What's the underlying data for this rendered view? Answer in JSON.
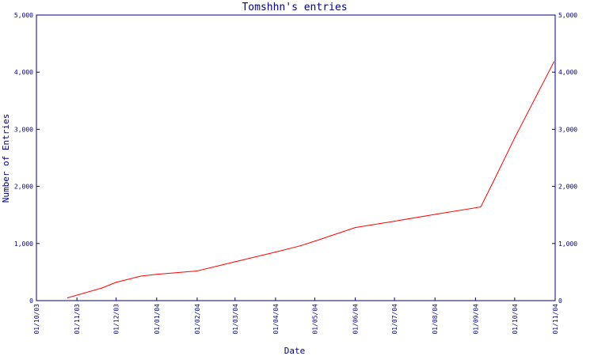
{
  "chart_data": {
    "type": "line",
    "title": "Tomshhn's entries",
    "xlabel": "Date",
    "ylabel": "Number of Entries",
    "x_ticks": [
      "01/10/03",
      "01/11/03",
      "01/12/03",
      "01/01/04",
      "01/02/04",
      "01/03/04",
      "01/04/04",
      "01/05/04",
      "01/06/04",
      "01/07/04",
      "01/08/04",
      "01/09/04",
      "01/10/04",
      "01/11/04"
    ],
    "y_ticks": [
      "0",
      "1,000",
      "2,000",
      "3,000",
      "4,000",
      "5,000"
    ],
    "ylim": [
      0,
      5000
    ],
    "xlim": [
      "2003-10-01",
      "2004-11-01"
    ],
    "grid": false,
    "series": [
      {
        "color": "#ff0000",
        "points": [
          {
            "x": "2003-10-25",
            "y": 50
          },
          {
            "x": "2003-11-20",
            "y": 220
          },
          {
            "x": "2003-12-01",
            "y": 320
          },
          {
            "x": "2003-12-20",
            "y": 430
          },
          {
            "x": "2004-01-01",
            "y": 460
          },
          {
            "x": "2004-02-01",
            "y": 520
          },
          {
            "x": "2004-03-01",
            "y": 680
          },
          {
            "x": "2004-04-01",
            "y": 850
          },
          {
            "x": "2004-04-20",
            "y": 960
          },
          {
            "x": "2004-05-01",
            "y": 1040
          },
          {
            "x": "2004-06-01",
            "y": 1280
          },
          {
            "x": "2004-07-01",
            "y": 1390
          },
          {
            "x": "2004-08-01",
            "y": 1510
          },
          {
            "x": "2004-09-05",
            "y": 1640
          },
          {
            "x": "2004-09-15",
            "y": 2100
          },
          {
            "x": "2004-10-01",
            "y": 2850
          },
          {
            "x": "2004-10-31",
            "y": 4180
          }
        ]
      }
    ]
  }
}
